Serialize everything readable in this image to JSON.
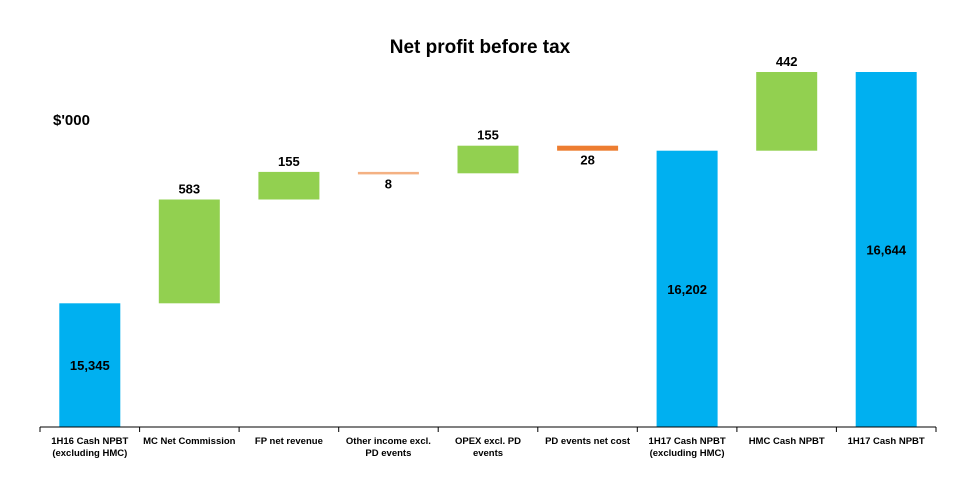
{
  "chart_data": {
    "type": "bar",
    "subtype": "waterfall",
    "title": "Net profit before tax",
    "unit_label": "$'000",
    "categories": [
      [
        "1H16 Cash NPBT",
        "(excluding HMC)"
      ],
      [
        "MC Net Commission"
      ],
      [
        "FP net revenue"
      ],
      [
        "Other income excl.",
        "PD events"
      ],
      [
        "OPEX excl. PD",
        "events"
      ],
      [
        "PD events net cost"
      ],
      [
        "1H17 Cash NPBT",
        "(excluding HMC)"
      ],
      [
        "HMC Cash NPBT"
      ],
      [
        "1H17 Cash NPBT"
      ]
    ],
    "bars": [
      {
        "kind": "total",
        "start": 0,
        "end": 15345,
        "value": 15345,
        "label": "15,345",
        "color": "#00B0F0"
      },
      {
        "kind": "increase",
        "start": 15345,
        "end": 15928,
        "value": 583,
        "label": "583",
        "color": "#92D050"
      },
      {
        "kind": "increase",
        "start": 15928,
        "end": 16083,
        "value": 155,
        "label": "155",
        "color": "#92D050"
      },
      {
        "kind": "decrease",
        "start": 16083,
        "end": 16075,
        "value": -8,
        "label": "8",
        "color": "#F4B183"
      },
      {
        "kind": "increase",
        "start": 16075,
        "end": 16230,
        "value": 155,
        "label": "155",
        "color": "#92D050"
      },
      {
        "kind": "decrease",
        "start": 16230,
        "end": 16202,
        "value": -28,
        "label": "28",
        "color": "#ED7D31"
      },
      {
        "kind": "total",
        "start": 0,
        "end": 16202,
        "value": 16202,
        "label": "16,202",
        "color": "#00B0F0"
      },
      {
        "kind": "increase",
        "start": 16202,
        "end": 16644,
        "value": 442,
        "label": "442",
        "color": "#92D050"
      },
      {
        "kind": "total",
        "start": 0,
        "end": 16644,
        "value": 16644,
        "label": "16,644",
        "color": "#00B0F0"
      }
    ],
    "axis_break": true,
    "ylim": [
      14650,
      16700
    ],
    "grid": false,
    "legend": "none"
  }
}
